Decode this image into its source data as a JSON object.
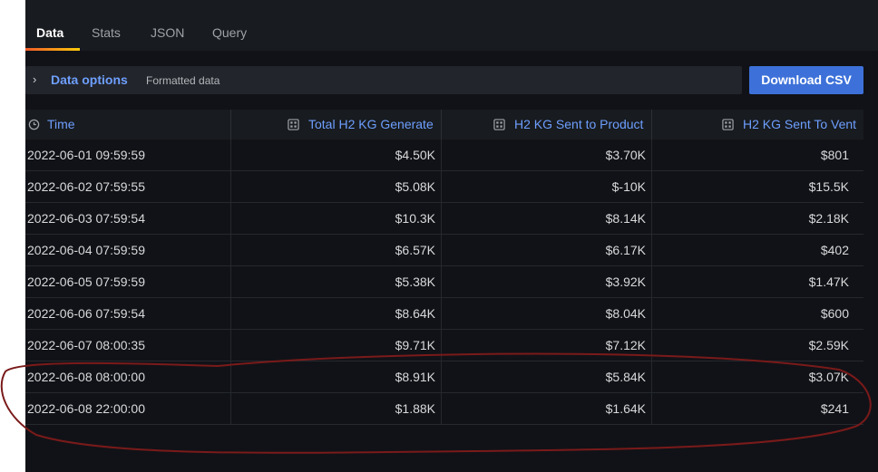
{
  "tabs": [
    "Data",
    "Stats",
    "JSON",
    "Query"
  ],
  "data_options": {
    "title": "Data options",
    "subtitle": "Formatted data",
    "download_label": "Download CSV"
  },
  "table": {
    "headers": [
      "Time",
      "Total H2 KG Generate",
      "H2 KG Sent to Product",
      "H2 KG Sent To Vent"
    ],
    "rows": [
      [
        "2022-06-01 09:59:59",
        "$4.50K",
        "$3.70K",
        "$801"
      ],
      [
        "2022-06-02 07:59:55",
        "$5.08K",
        "$-10K",
        "$15.5K"
      ],
      [
        "2022-06-03 07:59:54",
        "$10.3K",
        "$8.14K",
        "$2.18K"
      ],
      [
        "2022-06-04 07:59:59",
        "$6.57K",
        "$6.17K",
        "$402"
      ],
      [
        "2022-06-05 07:59:59",
        "$5.38K",
        "$3.92K",
        "$1.47K"
      ],
      [
        "2022-06-06 07:59:54",
        "$8.64K",
        "$8.04K",
        "$600"
      ],
      [
        "2022-06-07 08:00:35",
        "$9.71K",
        "$7.12K",
        "$2.59K"
      ],
      [
        "2022-06-08 08:00:00",
        "$8.91K",
        "$5.84K",
        "$3.07K"
      ],
      [
        "2022-06-08 22:00:00",
        "$1.88K",
        "$1.64K",
        "$241"
      ]
    ]
  },
  "icons": {
    "time_header": "clock-icon",
    "field_header": "field-icon",
    "options_toggle": "chevron-right-icon"
  },
  "colors": {
    "accent": "#6e9fff",
    "button": "#3d71d9",
    "annotation": "#7a1a1a"
  }
}
